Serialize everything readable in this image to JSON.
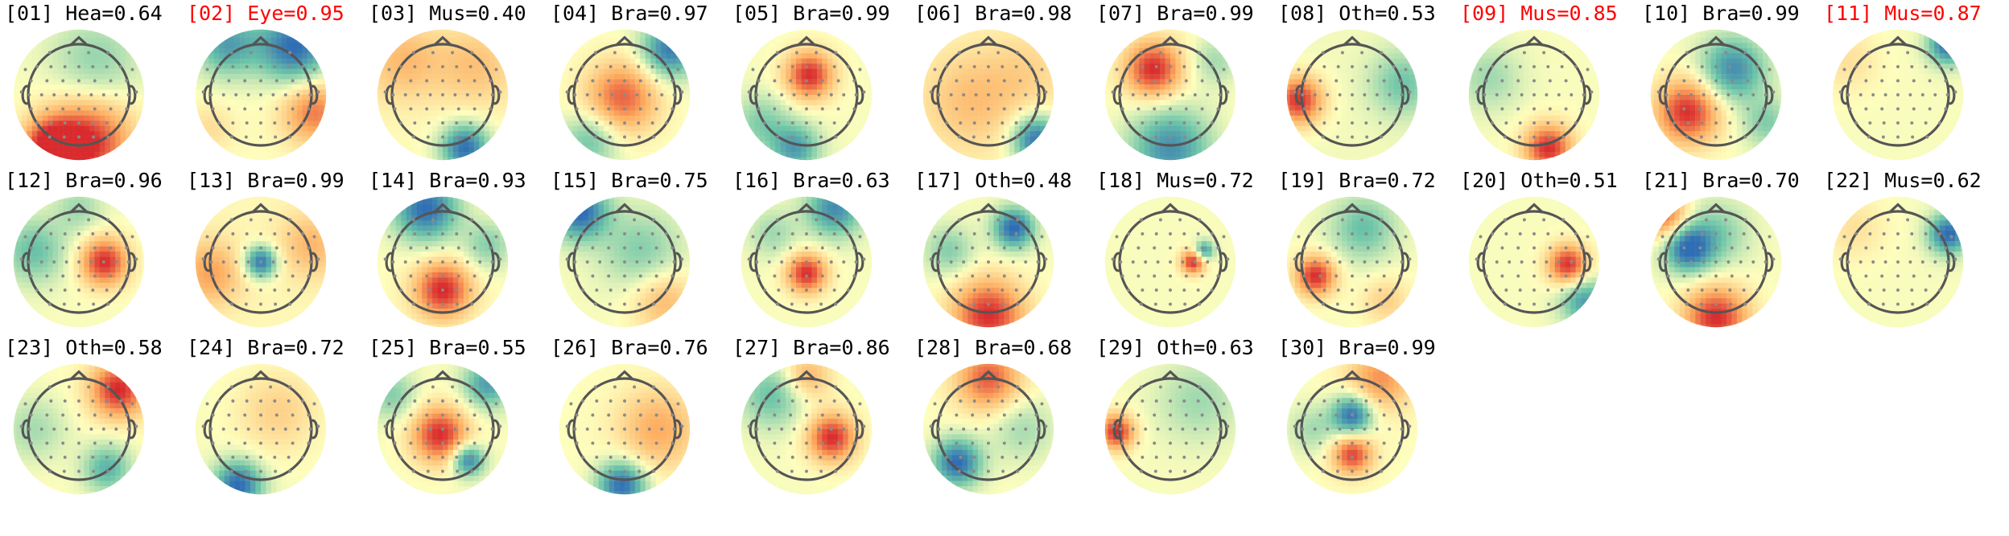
{
  "colors": {
    "normal_label": "#000000",
    "flagged_label": "#ff0000",
    "colormap": [
      "#2f6db4",
      "#6cc4a8",
      "#fefebd",
      "#fdae61",
      "#d7262c"
    ]
  },
  "chart_data": {
    "type": "topomap-grid",
    "title": "",
    "grid": {
      "rows": 3,
      "cols": 11
    },
    "components": [
      {
        "label": "[01] Hea=0.64",
        "index": 1,
        "class": "Hea",
        "prob": 0.64,
        "flagged": false
      },
      {
        "label": "[02] Eye=0.95",
        "index": 2,
        "class": "Eye",
        "prob": 0.95,
        "flagged": true
      },
      {
        "label": "[03] Mus=0.40",
        "index": 3,
        "class": "Mus",
        "prob": 0.4,
        "flagged": false
      },
      {
        "label": "[04] Bra=0.97",
        "index": 4,
        "class": "Bra",
        "prob": 0.97,
        "flagged": false
      },
      {
        "label": "[05] Bra=0.99",
        "index": 5,
        "class": "Bra",
        "prob": 0.99,
        "flagged": false
      },
      {
        "label": "[06] Bra=0.98",
        "index": 6,
        "class": "Bra",
        "prob": 0.98,
        "flagged": false
      },
      {
        "label": "[07] Bra=0.99",
        "index": 7,
        "class": "Bra",
        "prob": 0.99,
        "flagged": false
      },
      {
        "label": "[08] Oth=0.53",
        "index": 8,
        "class": "Oth",
        "prob": 0.53,
        "flagged": false
      },
      {
        "label": "[09] Mus=0.85",
        "index": 9,
        "class": "Mus",
        "prob": 0.85,
        "flagged": true
      },
      {
        "label": "[10] Bra=0.99",
        "index": 10,
        "class": "Bra",
        "prob": 0.99,
        "flagged": false
      },
      {
        "label": "[11] Mus=0.87",
        "index": 11,
        "class": "Mus",
        "prob": 0.87,
        "flagged": true
      },
      {
        "label": "[12] Bra=0.96",
        "index": 12,
        "class": "Bra",
        "prob": 0.96,
        "flagged": false
      },
      {
        "label": "[13] Bra=0.99",
        "index": 13,
        "class": "Bra",
        "prob": 0.99,
        "flagged": false
      },
      {
        "label": "[14] Bra=0.93",
        "index": 14,
        "class": "Bra",
        "prob": 0.93,
        "flagged": false
      },
      {
        "label": "[15] Bra=0.75",
        "index": 15,
        "class": "Bra",
        "prob": 0.75,
        "flagged": false
      },
      {
        "label": "[16] Bra=0.63",
        "index": 16,
        "class": "Bra",
        "prob": 0.63,
        "flagged": false
      },
      {
        "label": "[17] Oth=0.48",
        "index": 17,
        "class": "Oth",
        "prob": 0.48,
        "flagged": false
      },
      {
        "label": "[18] Mus=0.72",
        "index": 18,
        "class": "Mus",
        "prob": 0.72,
        "flagged": false
      },
      {
        "label": "[19] Bra=0.72",
        "index": 19,
        "class": "Bra",
        "prob": 0.72,
        "flagged": false
      },
      {
        "label": "[20] Oth=0.51",
        "index": 20,
        "class": "Oth",
        "prob": 0.51,
        "flagged": false
      },
      {
        "label": "[21] Bra=0.70",
        "index": 21,
        "class": "Bra",
        "prob": 0.7,
        "flagged": false
      },
      {
        "label": "[22] Mus=0.62",
        "index": 22,
        "class": "Mus",
        "prob": 0.62,
        "flagged": false
      },
      {
        "label": "[23] Oth=0.58",
        "index": 23,
        "class": "Oth",
        "prob": 0.58,
        "flagged": false
      },
      {
        "label": "[24] Bra=0.72",
        "index": 24,
        "class": "Bra",
        "prob": 0.72,
        "flagged": false
      },
      {
        "label": "[25] Bra=0.55",
        "index": 25,
        "class": "Bra",
        "prob": 0.55,
        "flagged": false
      },
      {
        "label": "[26] Bra=0.76",
        "index": 26,
        "class": "Bra",
        "prob": 0.76,
        "flagged": false
      },
      {
        "label": "[27] Bra=0.86",
        "index": 27,
        "class": "Bra",
        "prob": 0.86,
        "flagged": false
      },
      {
        "label": "[28] Bra=0.68",
        "index": 28,
        "class": "Bra",
        "prob": 0.68,
        "flagged": false
      },
      {
        "label": "[29] Oth=0.63",
        "index": 29,
        "class": "Oth",
        "prob": 0.63,
        "flagged": false
      },
      {
        "label": "[30] Bra=0.99",
        "index": 30,
        "class": "Bra",
        "prob": 0.99,
        "flagged": false
      }
    ]
  }
}
